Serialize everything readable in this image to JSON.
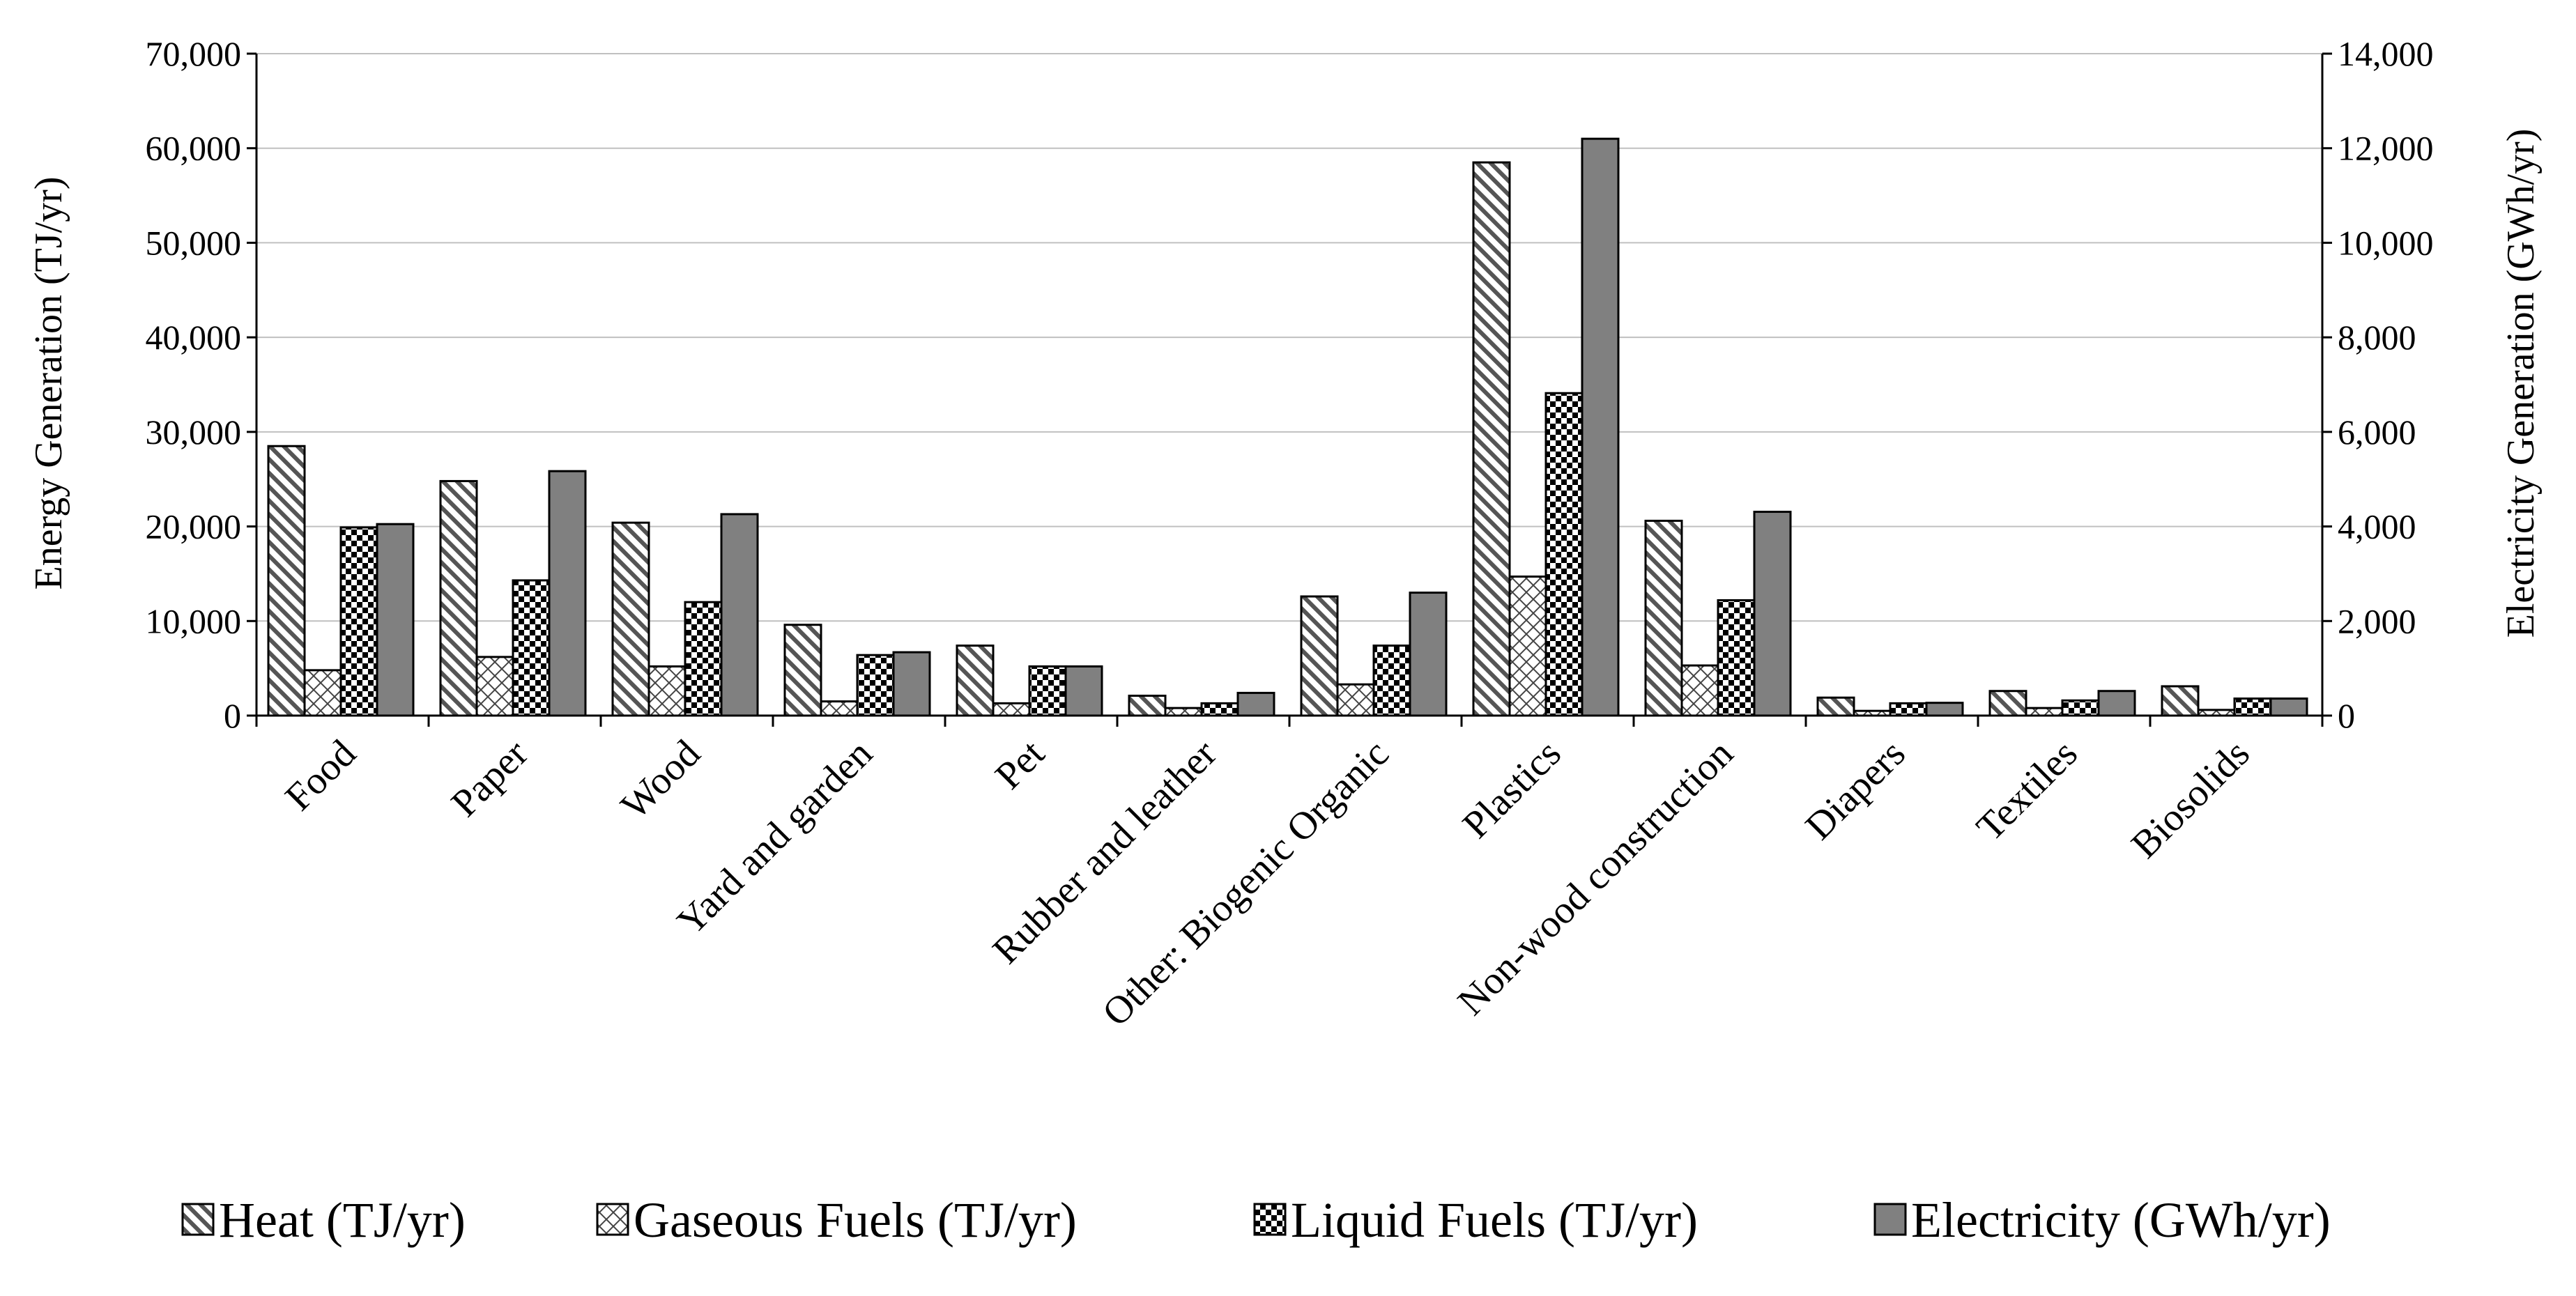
{
  "chart_data": {
    "type": "bar",
    "categories": [
      "Food",
      "Paper",
      "Wood",
      "Yard and garden",
      "Pet",
      "Rubber and leather",
      "Other: Biogenic Organic",
      "Plastics",
      "Non-wood construction",
      "Diapers",
      "Textiles",
      "Biosolids"
    ],
    "series": [
      {
        "name": "Heat (TJ/yr)",
        "axis": "left",
        "pattern": "diagonal",
        "values": [
          28500,
          24800,
          20400,
          9600,
          7400,
          2100,
          12600,
          58500,
          20600,
          1900,
          2600,
          3100
        ]
      },
      {
        "name": "Gaseous Fuels (TJ/yr)",
        "axis": "left",
        "pattern": "crosshatch",
        "values": [
          4800,
          6200,
          5200,
          1500,
          1300,
          800,
          3300,
          14700,
          5300,
          500,
          800,
          600
        ]
      },
      {
        "name": "Liquid Fuels (TJ/yr)",
        "axis": "left",
        "pattern": "checker",
        "values": [
          19900,
          14300,
          12000,
          6400,
          5200,
          1300,
          7400,
          34100,
          12200,
          1300,
          1600,
          1800
        ]
      },
      {
        "name": "Electricity (GWh/yr)",
        "axis": "right",
        "pattern": "solid",
        "values": [
          4050,
          5170,
          4260,
          1340,
          1040,
          480,
          2600,
          12200,
          4310,
          270,
          520,
          360
        ]
      }
    ],
    "ylabel": "Energy Generation (TJ/yr)",
    "y2label": "Electricity  Generation (GWh/yr)",
    "ylim": [
      0,
      70000
    ],
    "y2lim": [
      0,
      14000
    ],
    "yticks": [
      "0",
      "10,000",
      "20,000",
      "30,000",
      "40,000",
      "50,000",
      "60,000",
      "70,000"
    ],
    "y2ticks": [
      "0",
      "2,000",
      "4,000",
      "6,000",
      "8,000",
      "10,000",
      "12,000",
      "14,000"
    ],
    "grid": true,
    "legend_position": "bottom"
  },
  "colors": {
    "bar_fill": "#ffffff",
    "electricity": "#808080",
    "outline": "#000000",
    "grid": "#c0c0c0"
  }
}
